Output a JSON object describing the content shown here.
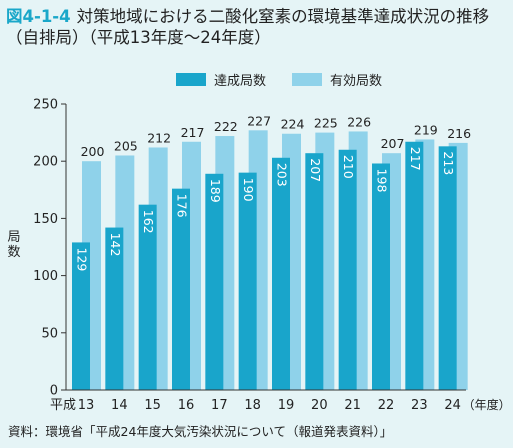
{
  "figure": {
    "number": "図4-1-4",
    "title": "対策地域における二酸化窒素の環境基準達成状況の推移（自排局）（平成13年度～24年度）"
  },
  "source": "資料：環境省「平成24年度大気汚染状況について（報道発表資料）」",
  "colors": {
    "achieved": "#19a5cb",
    "valid": "#8fd2ea",
    "accent": "#1aa7c9"
  },
  "chart_data": {
    "type": "bar",
    "ylabel": "局数",
    "xlabel_unit": "（年度）",
    "x_first_prefix": "平成",
    "ylim": [
      0,
      250
    ],
    "yticks": [
      0,
      50,
      100,
      150,
      200,
      250
    ],
    "grid": false,
    "legend_position": "top",
    "categories": [
      "13",
      "14",
      "15",
      "16",
      "17",
      "18",
      "19",
      "20",
      "21",
      "22",
      "23",
      "24"
    ],
    "series": [
      {
        "name": "達成局数",
        "values": [
          129,
          142,
          162,
          176,
          189,
          190,
          203,
          207,
          210,
          198,
          217,
          213
        ]
      },
      {
        "name": "有効局数",
        "values": [
          200,
          205,
          212,
          217,
          222,
          227,
          224,
          225,
          226,
          207,
          219,
          216
        ]
      }
    ]
  }
}
